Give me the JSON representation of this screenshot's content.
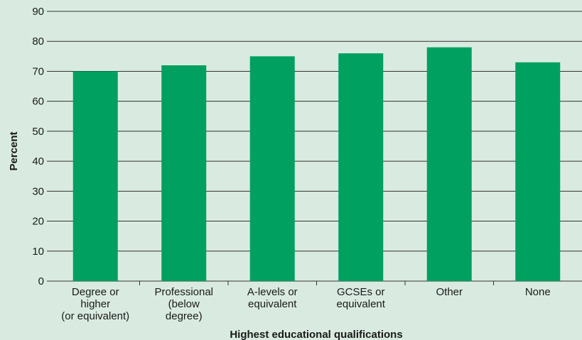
{
  "chart_data": {
    "type": "bar",
    "categories": [
      [
        "Degree or",
        "higher",
        "(or equivalent)"
      ],
      [
        "Professional",
        "(below",
        "degree)"
      ],
      [
        "A-levels or",
        "equivalent"
      ],
      [
        "GCSEs or",
        "equivalent"
      ],
      [
        "Other"
      ],
      [
        "None"
      ]
    ],
    "values": [
      70,
      72,
      75,
      76,
      78,
      73
    ],
    "title": "",
    "xlabel": "Highest educational qualifications",
    "ylabel": "Percent",
    "ylim": [
      0,
      90
    ],
    "yticks": [
      0,
      10,
      20,
      30,
      40,
      50,
      60,
      70,
      80,
      90
    ],
    "grid": true,
    "legend": "none",
    "colors": {
      "background": "#d9ebe0",
      "bar": "#00a060",
      "grid": "#333333"
    }
  }
}
